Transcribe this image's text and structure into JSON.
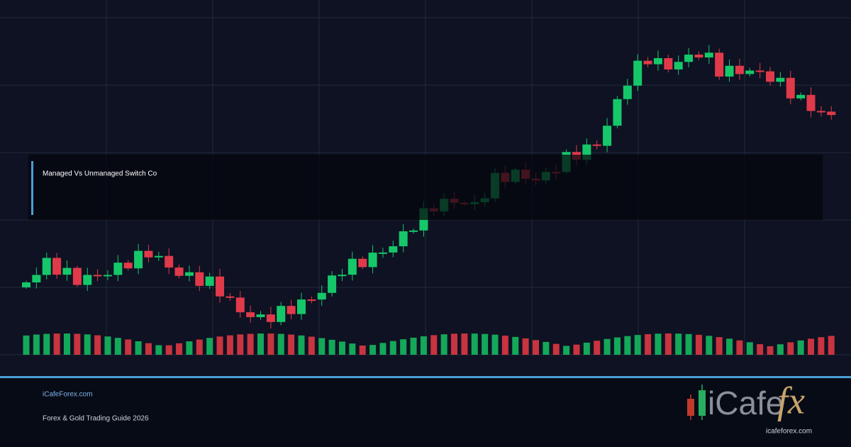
{
  "overlay": {
    "title": "Managed Vs Unmanaged Switch Co"
  },
  "footer": {
    "site": "iCafeForex.com",
    "tagline": "Forex & Gold Trading Guide 2026"
  },
  "logo": {
    "brand": "iCafe",
    "mark": "fx",
    "url": "icafeforex.com"
  }
}
